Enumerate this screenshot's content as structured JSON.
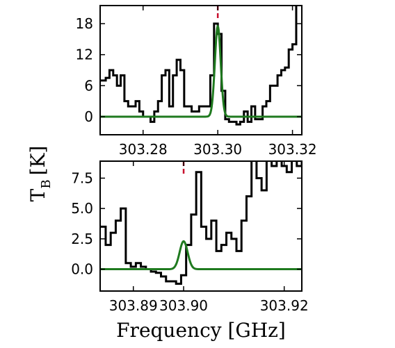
{
  "chart_data": [
    {
      "type": "line",
      "xlim": [
        303.2685,
        303.3225
      ],
      "ylim": [
        -3.5,
        21.5
      ],
      "xticks": [
        303.28,
        303.3,
        303.32
      ],
      "xtick_labels": [
        "303.28",
        "303.30",
        "303.32"
      ],
      "yticks": [
        0,
        6,
        12,
        18
      ],
      "ytick_labels": [
        "0",
        "6",
        "12",
        "18"
      ],
      "marker_x": 303.3,
      "observed": {
        "x": [
          303.2685,
          303.27,
          303.271,
          303.272,
          303.273,
          303.274,
          303.275,
          303.276,
          303.277,
          303.278,
          303.279,
          303.28,
          303.281,
          303.282,
          303.283,
          303.284,
          303.285,
          303.286,
          303.287,
          303.288,
          303.289,
          303.29,
          303.291,
          303.292,
          303.293,
          303.294,
          303.295,
          303.296,
          303.297,
          303.298,
          303.299,
          303.3,
          303.301,
          303.302,
          303.303,
          303.304,
          303.305,
          303.306,
          303.307,
          303.308,
          303.309,
          303.31,
          303.311,
          303.312,
          303.313,
          303.314,
          303.315,
          303.316,
          303.317,
          303.318,
          303.319,
          303.32,
          303.321
        ],
        "y": [
          7,
          7.5,
          9,
          8,
          6,
          8,
          3,
          2,
          2,
          3,
          1,
          0,
          0,
          -1,
          1,
          3,
          8,
          9,
          2,
          8,
          11,
          9,
          2,
          2,
          1,
          1,
          2,
          2,
          2,
          8,
          18,
          16,
          5,
          -0.5,
          -1,
          -1,
          -1.5,
          -1,
          1,
          -1,
          2,
          -0.5,
          -0.5,
          2,
          3,
          6,
          6,
          8,
          9,
          9.5,
          13,
          14,
          22
        ]
      },
      "model": {
        "center": 303.3,
        "peak": 17.5,
        "sigma": 0.00078
      }
    },
    {
      "type": "line",
      "xlim": [
        303.8834,
        303.9235
      ],
      "ylim": [
        -1.8,
        8.9
      ],
      "xticks": [
        303.89,
        303.9,
        303.92
      ],
      "xtick_labels": [
        "303.89",
        "303.90",
        "303.92"
      ],
      "yticks": [
        0,
        2.5,
        5,
        7.5
      ],
      "ytick_labels": [
        "0.0",
        "2.5",
        "5.0",
        "7.5"
      ],
      "marker_x": 303.9,
      "observed": {
        "x": [
          303.8834,
          303.8845,
          303.8855,
          303.8865,
          303.8875,
          303.8885,
          303.8895,
          303.8905,
          303.8915,
          303.8925,
          303.8935,
          303.8945,
          303.8955,
          303.8965,
          303.8975,
          303.8985,
          303.8995,
          303.9005,
          303.9015,
          303.9025,
          303.9035,
          303.9045,
          303.9055,
          303.9065,
          303.9075,
          303.9085,
          303.9095,
          303.9105,
          303.9115,
          303.9125,
          303.9135,
          303.9145,
          303.9155,
          303.9165,
          303.9175,
          303.9185,
          303.9195,
          303.9205,
          303.9215,
          303.9225,
          303.9235
        ],
        "y": [
          3.5,
          2,
          3,
          4,
          5,
          0.5,
          0.2,
          0.5,
          0.2,
          0,
          -0.2,
          -0.3,
          -0.6,
          -1,
          -1,
          -1.2,
          -0.5,
          2,
          4.5,
          8,
          3.5,
          2.5,
          4,
          1.5,
          2,
          3,
          2.5,
          1.5,
          4,
          6,
          9,
          7.5,
          6.5,
          9,
          8.5,
          9,
          8.5,
          8,
          9,
          8.5,
          9
        ]
      },
      "model": {
        "center": 303.9,
        "peak": 2.3,
        "sigma": 0.0008
      }
    }
  ],
  "ylabel": "T_B [K]",
  "ylabel_main": "T",
  "ylabel_sub": "B",
  "ylabel_unit": "[K]",
  "xlabel": "Frequency [GHz]"
}
